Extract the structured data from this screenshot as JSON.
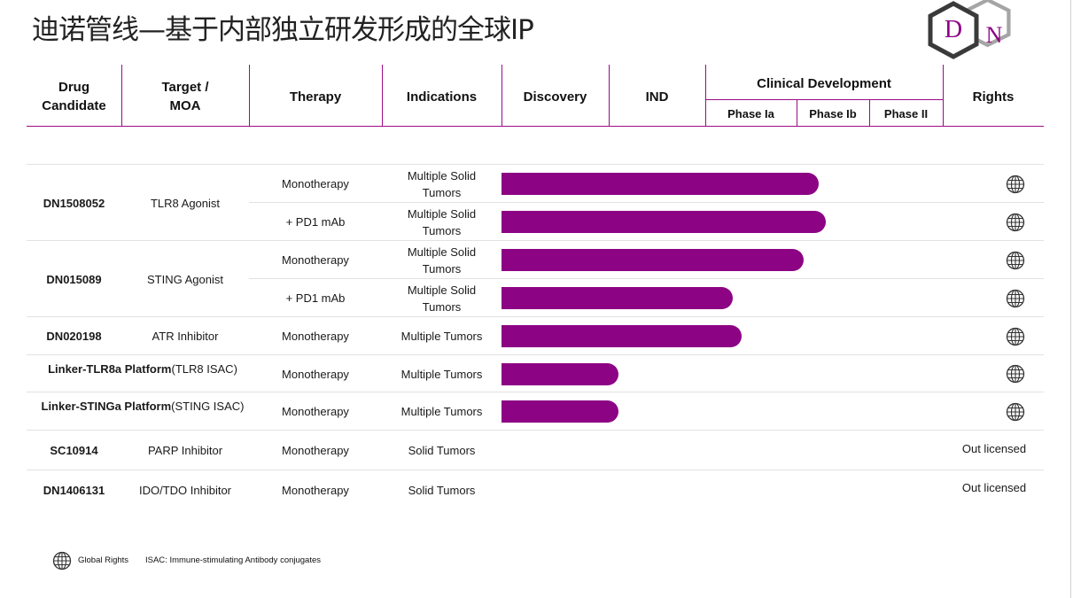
{
  "title": "迪诺管线—基于内部独立研发形成的全球IP",
  "logo": {
    "letter_left": "D",
    "letter_right": "N",
    "colors": {
      "dark": "#3a3a3a",
      "gray": "#a5a5a5",
      "purple": "#8c0384"
    }
  },
  "headers": {
    "drug_candidate": [
      "Drug",
      "Candidate"
    ],
    "target_moa": [
      "Target /",
      "MOA"
    ],
    "therapy": "Therapy",
    "indications": "Indications",
    "discovery": "Discovery",
    "ind": "IND",
    "clinical_development": "Clinical Development",
    "phase_ia": "Phase Ia",
    "phase_ib": "Phase Ib",
    "phase_ii": "Phase II",
    "rights": "Rights"
  },
  "chart_data": {
    "type": "bar",
    "orientation": "horizontal",
    "stages": [
      "Discovery",
      "IND",
      "Phase Ia",
      "Phase Ib",
      "Phase II"
    ],
    "stage_boundaries": [
      0,
      1,
      2,
      3,
      4,
      5
    ],
    "rows": [
      {
        "candidate": "DN1508052",
        "target": "TLR8 Agonist",
        "therapy": "Monotherapy",
        "indication": [
          "Multiple Solid",
          "Tumors"
        ],
        "progress": 3.3,
        "rights": "global"
      },
      {
        "candidate": "",
        "target": "",
        "therapy": "+ PD1 mAb",
        "indication": [
          "Multiple Solid",
          "Tumors"
        ],
        "progress": 3.4,
        "rights": "global"
      },
      {
        "candidate": "DN015089",
        "target": "STING Agonist",
        "therapy": "Monotherapy",
        "indication": [
          "Multiple Solid",
          "Tumors"
        ],
        "progress": 3.1,
        "rights": "global"
      },
      {
        "candidate": "",
        "target": "",
        "therapy": "+ PD1 mAb",
        "indication": [
          "Multiple Solid",
          "Tumors"
        ],
        "progress": 2.3,
        "rights": "global"
      },
      {
        "candidate": "DN020198",
        "target": "ATR Inhibitor",
        "therapy": "Monotherapy",
        "indication": [
          "Multiple Tumors"
        ],
        "progress": 2.4,
        "rights": "global"
      },
      {
        "candidate": "Linker-TLR8a  Platform",
        "target": "(TLR8 ISAC)",
        "therapy": "Monotherapy",
        "indication": [
          "Multiple Tumors"
        ],
        "progress": 1.1,
        "rights": "global"
      },
      {
        "candidate": "Linker-STINGa  Platform",
        "target": "(STING ISAC)",
        "therapy": "Monotherapy",
        "indication": [
          "Multiple Tumors"
        ],
        "progress": 1.1,
        "rights": "global"
      },
      {
        "candidate": "SC10914",
        "target": "PARP Inhibitor",
        "therapy": "Monotherapy",
        "indication": [
          "Solid Tumors"
        ],
        "progress": 0,
        "rights": "Out licensed"
      },
      {
        "candidate": "DN1406131",
        "target": "IDO/TDO Inhibitor",
        "therapy": "Monotherapy",
        "indication": [
          "Solid Tumors"
        ],
        "progress": 0,
        "rights": "Out licensed"
      }
    ],
    "bar_color": "#8c0384"
  },
  "legend": {
    "global_rights_icon": "globe-icon",
    "global_rights_label": "Global Rights",
    "isac_note": "ISAC: Immune-stimulating Antibody conjugates"
  }
}
